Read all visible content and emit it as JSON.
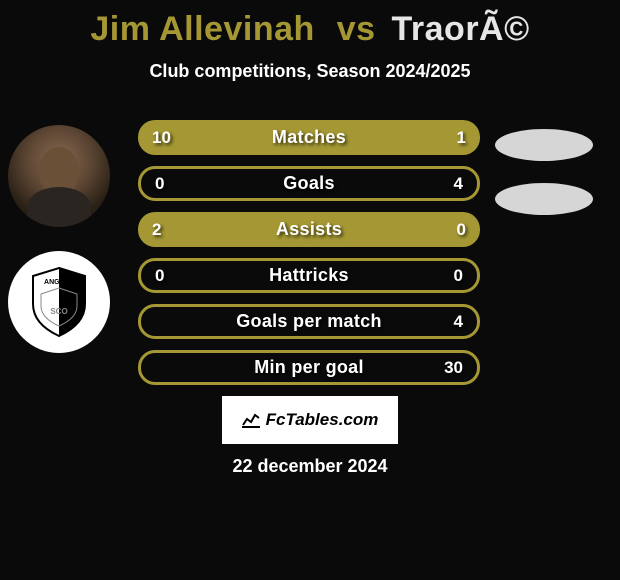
{
  "title": {
    "player1": "Jim Allevinah",
    "vs": "vs",
    "player2": "TraorÃ©",
    "player1_color": "#a59834",
    "vs_color": "#a59834",
    "player2_color": "#e6e6e6"
  },
  "subtitle": "Club competitions, Season 2024/2025",
  "avatars": {
    "player_name": "Jim Allevinah",
    "club_name": "Angers SCO",
    "club_text": "ANGERS",
    "club_sub": "SCO"
  },
  "stats": {
    "fill_color": "#a59834",
    "rows": [
      {
        "label": "Matches",
        "left": "10",
        "right": "1",
        "variant": "filled",
        "show_oval": true
      },
      {
        "label": "Goals",
        "left": "0",
        "right": "4",
        "variant": "outlined",
        "show_oval": true
      },
      {
        "label": "Assists",
        "left": "2",
        "right": "0",
        "variant": "filled",
        "show_oval": false
      },
      {
        "label": "Hattricks",
        "left": "0",
        "right": "0",
        "variant": "outlined",
        "show_oval": false
      },
      {
        "label": "Goals per match",
        "left": "",
        "right": "4",
        "variant": "outlined",
        "show_oval": false
      },
      {
        "label": "Min per goal",
        "left": "",
        "right": "30",
        "variant": "outlined",
        "show_oval": false
      }
    ]
  },
  "footer": {
    "brand": "FcTables.com",
    "date": "22 december 2024"
  },
  "colors": {
    "background": "#0a0a0a",
    "text": "#ffffff",
    "oval": "#e8e8e8"
  }
}
